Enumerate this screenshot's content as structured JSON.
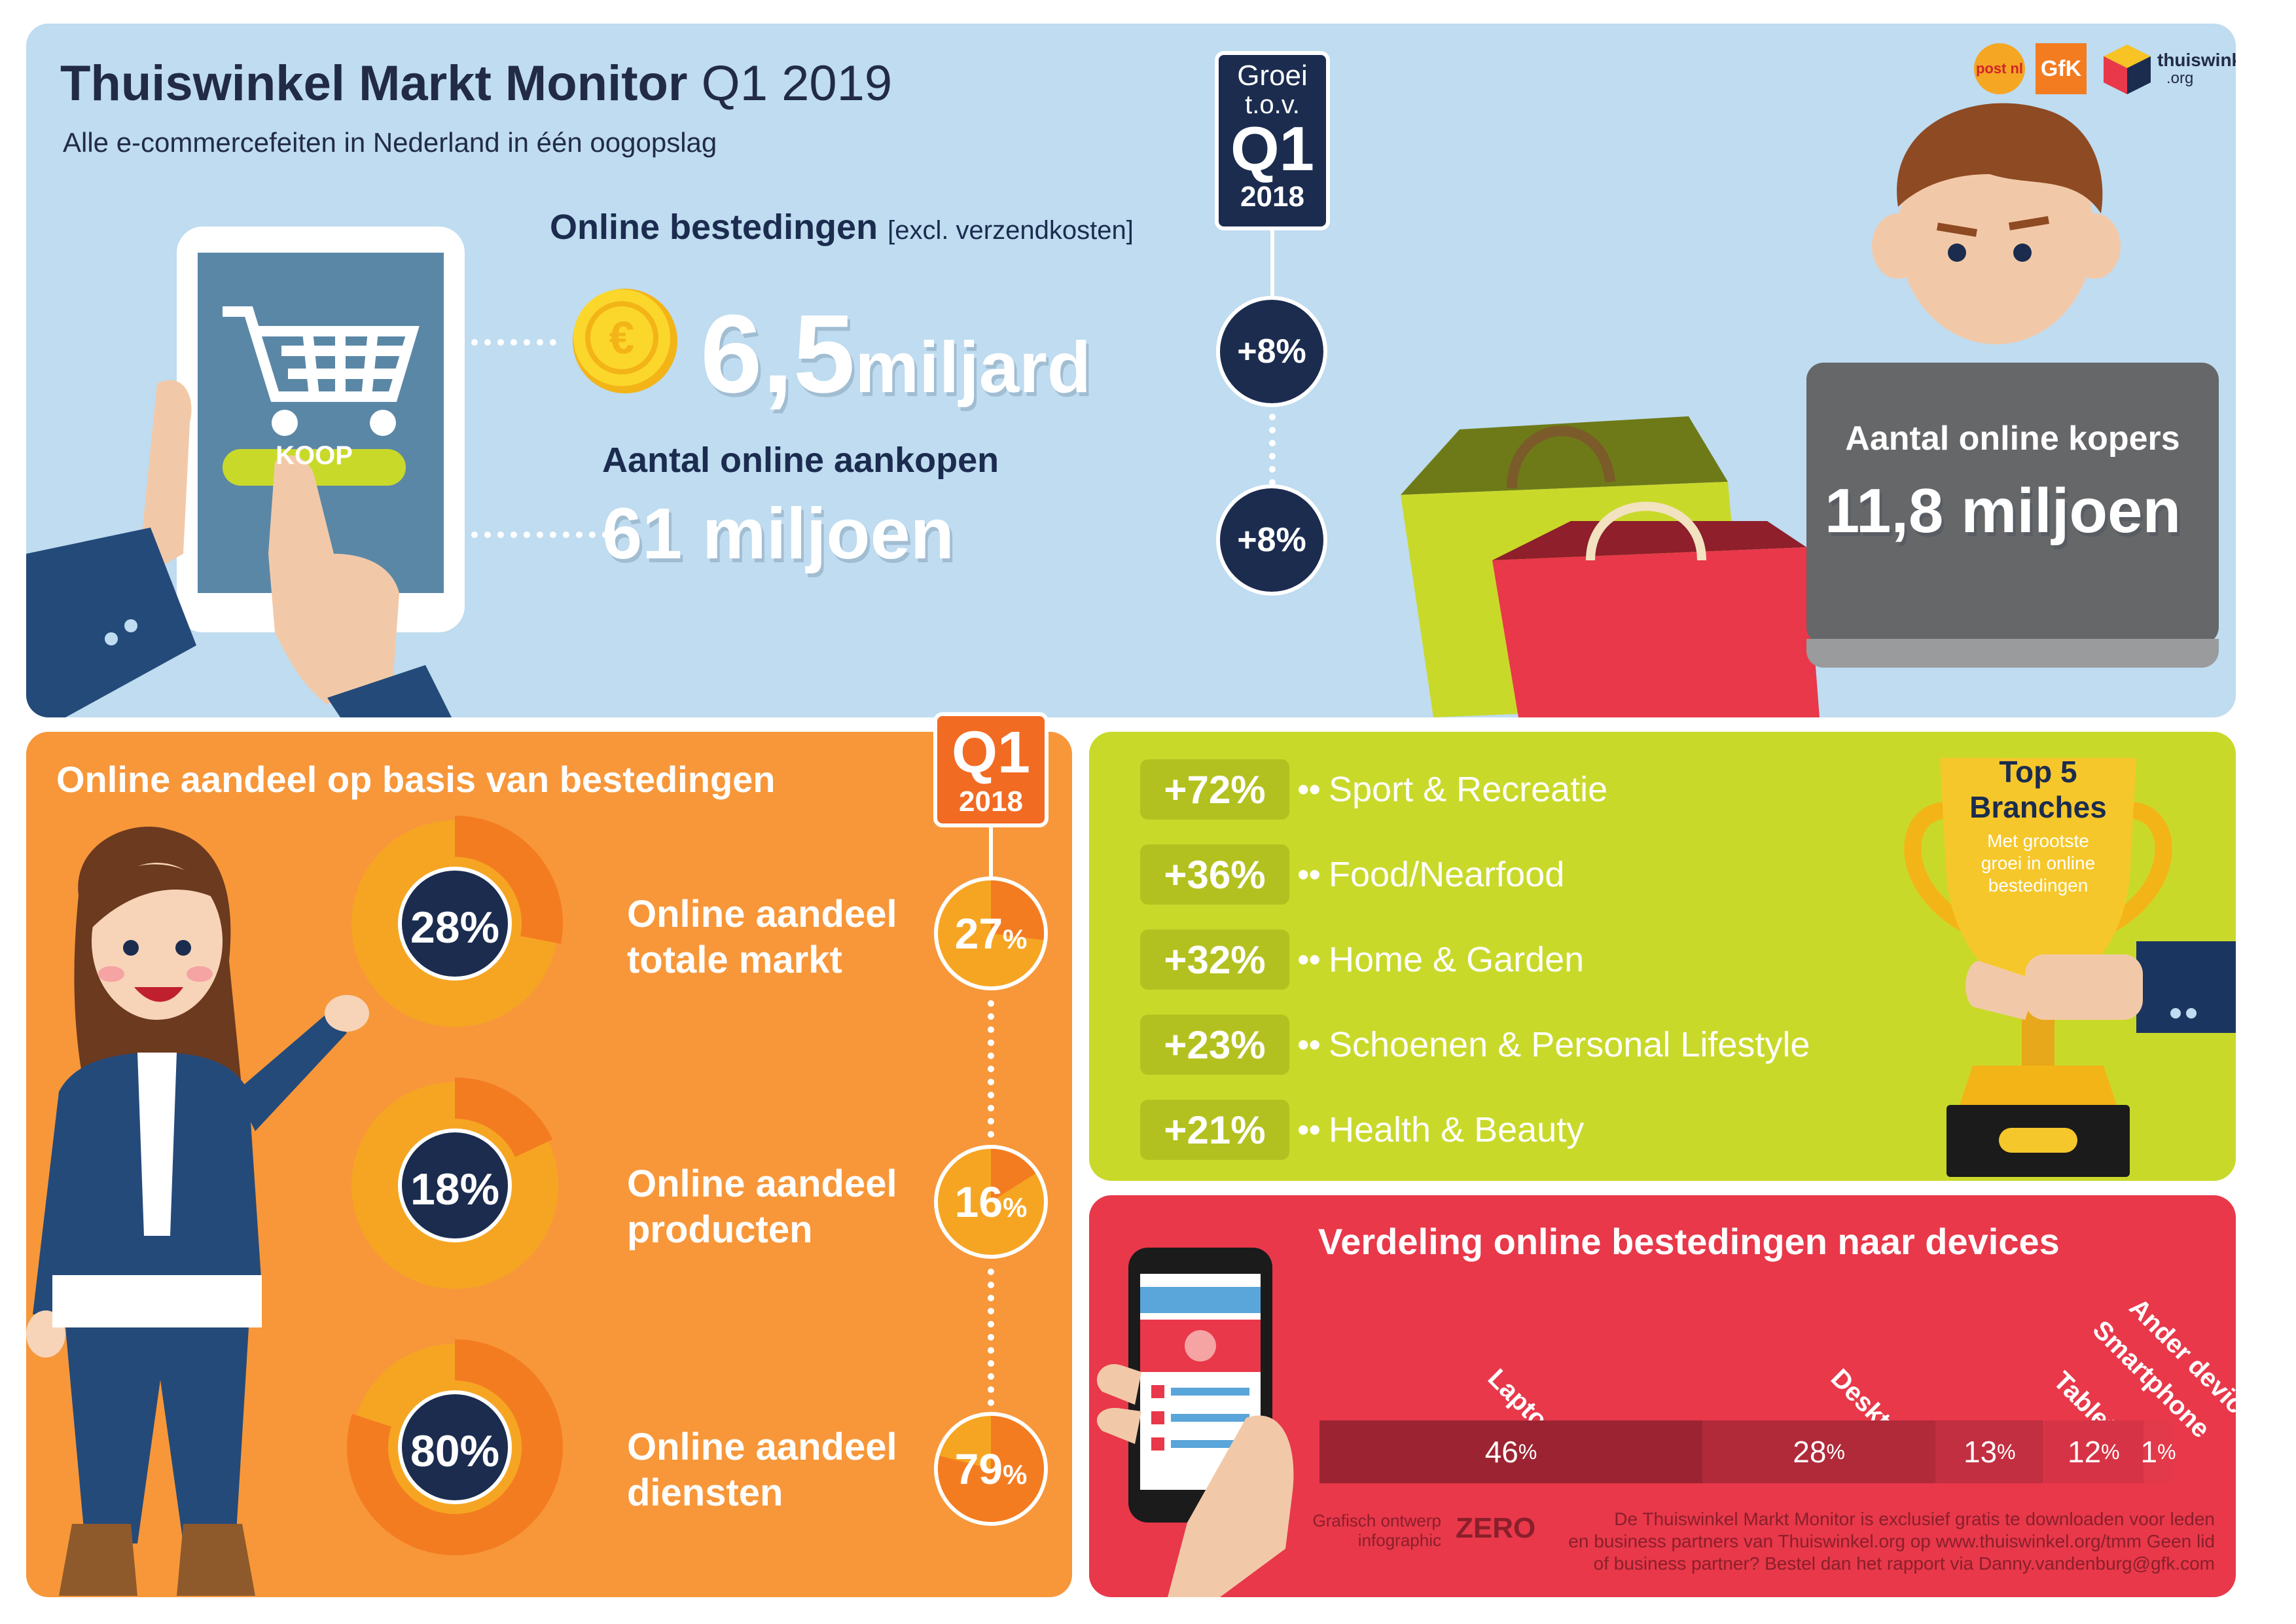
{
  "header": {
    "title_main": "Thuiswinkel Markt Monitor",
    "title_period": "Q1 2019",
    "subtitle": "Alle e-commercefeiten in Nederland in één oogopslag"
  },
  "logos": [
    "post nl",
    "GfK",
    "thuiswinkel",
    ".org"
  ],
  "growth_tag": {
    "line1": "Groei",
    "line2": "t.o.v.",
    "line3": "Q1",
    "line4": "2018"
  },
  "tablet": {
    "button_label": "KOOP"
  },
  "spending": {
    "label": "Online bestedingen",
    "note": "[excl. verzendkosten]",
    "value": "6,5",
    "unit": "miljard",
    "growth": "+8%"
  },
  "purchases": {
    "label": "Aantal online aankopen",
    "value": "61 miljoen",
    "growth": "+8%"
  },
  "buyers": {
    "label": "Aantal online kopers",
    "value": "11,8 miljoen"
  },
  "share": {
    "title": "Online aandeel op basis van bestedingen",
    "tag": {
      "line1": "Q1",
      "line2": "2018"
    },
    "items": [
      {
        "pct": "28%",
        "fraction": 0.28,
        "label1": "Online aandeel",
        "label2": "totale markt",
        "prev": "27",
        "prev_unit": "%",
        "prev_fraction": 0.27
      },
      {
        "pct": "18%",
        "fraction": 0.18,
        "label1": "Online aandeel",
        "label2": "producten",
        "prev": "16",
        "prev_unit": "%",
        "prev_fraction": 0.16
      },
      {
        "pct": "80%",
        "fraction": 0.8,
        "label1": "Online aandeel",
        "label2": "diensten",
        "prev": "79",
        "prev_unit": "%",
        "prev_fraction": 0.79
      }
    ]
  },
  "branches": {
    "trophy_title1": "Top 5",
    "trophy_title2": "Branches",
    "trophy_sub1": "Met grootste",
    "trophy_sub2": "groei in online",
    "trophy_sub3": "bestedingen",
    "items": [
      {
        "pct": "+72%",
        "name": "Sport & Recreatie"
      },
      {
        "pct": "+36%",
        "name": "Food/Nearfood"
      },
      {
        "pct": "+32%",
        "name": "Home & Garden"
      },
      {
        "pct": "+23%",
        "name": "Schoenen & Personal Lifestyle"
      },
      {
        "pct": "+21%",
        "name": "Health & Beauty"
      }
    ]
  },
  "devices": {
    "title": "Verdeling online bestedingen naar devices",
    "items": [
      {
        "name": "Laptop",
        "value": "46",
        "unit": "%",
        "share": 46,
        "color": "#9c2432"
      },
      {
        "name": "Desktop",
        "value": "28",
        "unit": "%",
        "share": 28,
        "color": "#b02a3a"
      },
      {
        "name": "Tablet",
        "value": "13",
        "unit": "%",
        "share": 13,
        "color": "#c22f41"
      },
      {
        "name": "Smartphone",
        "value": "12",
        "unit": "%",
        "share": 12,
        "color": "#d63446"
      },
      {
        "name": "Ander device",
        "value": "1",
        "unit": "%",
        "share": 1,
        "color": "#e2394b"
      }
    ]
  },
  "footer": {
    "credit1": "Grafisch ontwerp",
    "credit2": "infographic",
    "credit_logo": "ZERO",
    "line1": "De Thuiswinkel Markt Monitor is exclusief gratis te downloaden voor leden",
    "line2": "en business partners van Thuiswinkel.org op www.thuiswinkel.org/tmm Geen lid",
    "line3": "of business partner? Bestel dan het rapport via Danny.vandenburg@gfk.com"
  },
  "colors": {
    "navy": "#1b2c4f",
    "sky": "#bfdcf0",
    "orange": "#f7973a",
    "lime": "#c9d92a",
    "red": "#e8384a"
  }
}
